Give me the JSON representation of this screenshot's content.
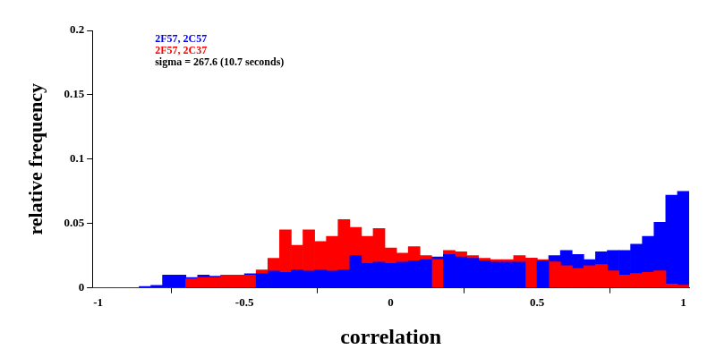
{
  "chart_data": {
    "type": "histogram",
    "xlabel": "correlation",
    "ylabel": "relative frequency",
    "annotations": [
      "sigma = 267.6 (10.7 seconds)"
    ],
    "bins": [
      -1.02,
      -0.98,
      -0.94,
      -0.9,
      -0.86,
      -0.82,
      -0.78,
      -0.74,
      -0.7,
      -0.66,
      -0.62,
      -0.58,
      -0.54,
      -0.5,
      -0.46,
      -0.42,
      -0.38,
      -0.34,
      -0.3,
      -0.26,
      -0.22,
      -0.18,
      -0.14,
      -0.1,
      -0.06,
      -0.02,
      0.02,
      0.06,
      0.1,
      0.14,
      0.18,
      0.22,
      0.26,
      0.3,
      0.34,
      0.38,
      0.42,
      0.46,
      0.5,
      0.54,
      0.58,
      0.62,
      0.66,
      0.7,
      0.74,
      0.78,
      0.82,
      0.86,
      0.9,
      0.94,
      0.98,
      1.02
    ],
    "series": [
      {
        "name": "2F57, 2C57",
        "color": "#0000ff",
        "values": [
          0,
          0,
          0,
          0,
          0.001,
          0.002,
          0.01,
          0.01,
          0.008,
          0.01,
          0.009,
          0.01,
          0.01,
          0.011,
          0.011,
          0.013,
          0.012,
          0.014,
          0.013,
          0.014,
          0.013,
          0.014,
          0.025,
          0.019,
          0.02,
          0.019,
          0.02,
          0.021,
          0.022,
          0.024,
          0.026,
          0.024,
          0.023,
          0.021,
          0.02,
          0.02,
          0.02,
          0.023,
          0.021,
          0.025,
          0.029,
          0.026,
          0.022,
          0.028,
          0.029,
          0.029,
          0.034,
          0.04,
          0.051,
          0.072,
          0.075
        ]
      },
      {
        "name": "2F57, 2C37",
        "color": "#ff0000",
        "values": [
          0,
          0,
          0,
          0,
          0,
          0,
          0,
          0,
          0.007,
          0.008,
          0.008,
          0.01,
          0.01,
          0.01,
          0.014,
          0.023,
          0.045,
          0.033,
          0.045,
          0.036,
          0.04,
          0.053,
          0.047,
          0.04,
          0.046,
          0.031,
          0.027,
          0.032,
          0.025,
          0.022,
          0.029,
          0.028,
          0.025,
          0.023,
          0.022,
          0.022,
          0.025,
          0.023,
          0.022,
          0.02,
          0.017,
          0.015,
          0.017,
          0.018,
          0.013,
          0.01,
          0.011,
          0.012,
          0.013,
          0.003,
          0.002
        ]
      }
    ],
    "xlim": [
      -1.02,
      1.02
    ],
    "xticks": [
      -1,
      -0.5,
      0,
      0.5,
      1
    ],
    "ylim": [
      0,
      0.2
    ],
    "yticks": [
      0,
      0.05,
      0.1,
      0.15,
      0.2
    ],
    "grid": false
  }
}
